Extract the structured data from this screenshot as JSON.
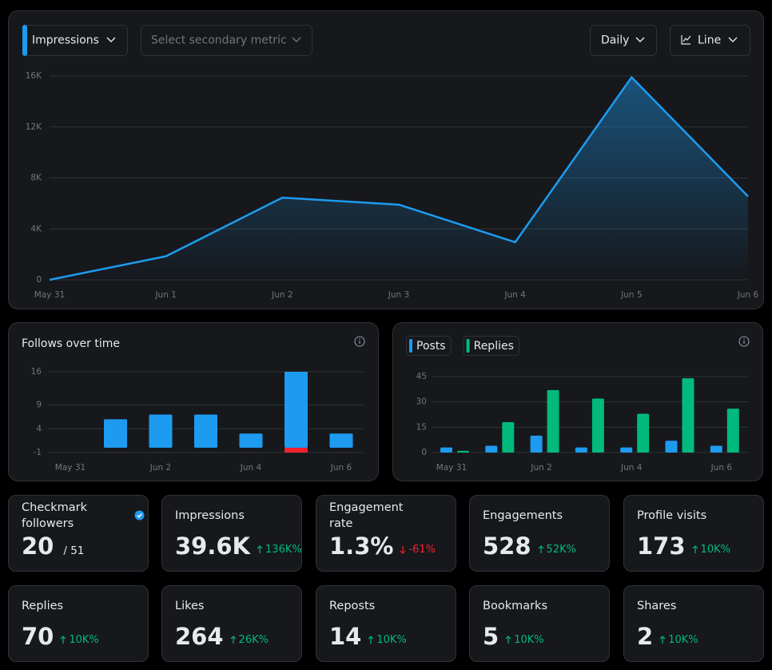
{
  "controls": {
    "primary_metric": "Impressions",
    "secondary_metric": "Select secondary metric",
    "interval": "Daily",
    "chart_style": "Line"
  },
  "chart_data": [
    {
      "type": "area",
      "categories": [
        "May 31",
        "Jun 1",
        "Jun 2",
        "Jun 3",
        "Jun 4",
        "Jun 5",
        "Jun 6"
      ],
      "series": [
        {
          "color": "#1d9bf0",
          "values": [
            0,
            1850,
            6450,
            5900,
            2950,
            15900,
            6550
          ]
        }
      ],
      "ylim": [
        0,
        16000
      ],
      "yticks": [
        0,
        {
          "value": 4000,
          "label": "4K"
        },
        {
          "value": 8000,
          "label": "8K"
        },
        {
          "value": 12000,
          "label": "12K"
        },
        {
          "value": 16000,
          "label": "16K"
        }
      ],
      "grid": true
    },
    {
      "type": "bar",
      "title": "Follows over time",
      "categories": [
        "May 31",
        null,
        "Jun 2",
        null,
        "Jun 4",
        null,
        "Jun 6"
      ],
      "series": [
        {
          "color": "#1d9bf0",
          "values": [
            0,
            6,
            7,
            7,
            3,
            16,
            3
          ]
        },
        {
          "color": "#f4212e",
          "values": [
            0,
            0,
            0,
            0,
            0,
            -1,
            0
          ]
        }
      ],
      "ylim": [
        -1,
        16
      ],
      "yticks": [
        -1,
        4,
        9,
        16
      ],
      "grid": true
    },
    {
      "type": "grouped-bar",
      "categories": [
        "May 31",
        null,
        "Jun 2",
        null,
        "Jun 4",
        null,
        "Jun 6"
      ],
      "series": [
        {
          "name": "Posts",
          "color": "#1d9bf0",
          "values": [
            3,
            4,
            10,
            3,
            3,
            7,
            4
          ]
        },
        {
          "name": "Replies",
          "color": "#00ba7c",
          "values": [
            1,
            18,
            37,
            32,
            23,
            44,
            26
          ]
        }
      ],
      "ylim": [
        0,
        45
      ],
      "yticks": [
        0,
        15,
        30,
        45
      ],
      "grid": true
    }
  ],
  "stats": [
    {
      "label": "Checkmark followers",
      "value": "20",
      "total": "/ 51",
      "verified": true
    },
    {
      "label": "Impressions",
      "value": "39.6K",
      "change": "136K%",
      "trend": "up"
    },
    {
      "label": "Engagement rate",
      "value": "1.3%",
      "change": "-61%",
      "trend": "down"
    },
    {
      "label": "Engagements",
      "value": "528",
      "change": "52K%",
      "trend": "up"
    },
    {
      "label": "Profile visits",
      "value": "173",
      "change": "10K%",
      "trend": "up"
    },
    {
      "label": "Replies",
      "value": "70",
      "change": "10K%",
      "trend": "up"
    },
    {
      "label": "Likes",
      "value": "264",
      "change": "26K%",
      "trend": "up"
    },
    {
      "label": "Reposts",
      "value": "14",
      "change": "10K%",
      "trend": "up"
    },
    {
      "label": "Bookmarks",
      "value": "5",
      "change": "10K%",
      "trend": "up"
    },
    {
      "label": "Shares",
      "value": "2",
      "change": "10K%",
      "trend": "up"
    }
  ]
}
